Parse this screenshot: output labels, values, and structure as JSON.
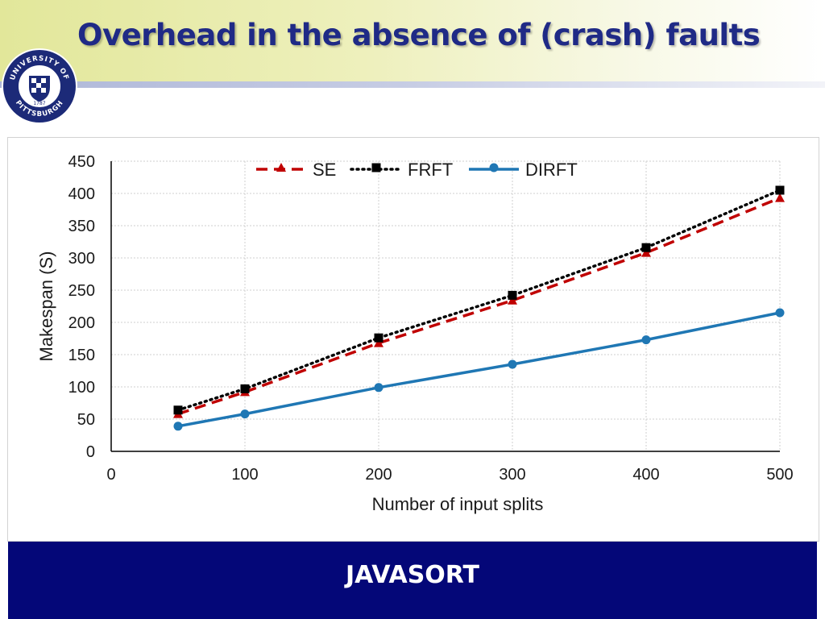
{
  "slide": {
    "title": "Overhead in the absence of (crash) faults",
    "caption": "JAVASORT",
    "logo_text_top": "UNIVERSITY OF",
    "logo_text_bottom": "PITTSBURGH",
    "logo_year": "1787"
  },
  "colors": {
    "title": "#1f2a86",
    "caption_bg": "#040778",
    "SE": "#c00000",
    "FRFT": "#000000",
    "DIRFT": "#1f77b4"
  },
  "chart_data": {
    "type": "line",
    "title": "",
    "xlabel": "Number of input splits",
    "ylabel": "Makespan (S)",
    "xlim": [
      0,
      500
    ],
    "ylim": [
      0,
      450
    ],
    "xticks": [
      0,
      100,
      200,
      300,
      400,
      500
    ],
    "yticks": [
      0,
      50,
      100,
      150,
      200,
      250,
      300,
      350,
      400,
      450
    ],
    "grid": true,
    "legend": "top",
    "x": [
      50,
      100,
      200,
      300,
      400,
      500
    ],
    "series": [
      {
        "name": "SE",
        "values": [
          58,
          92,
          168,
          234,
          308,
          393
        ],
        "style": "dashed",
        "marker": "triangle"
      },
      {
        "name": "FRFT",
        "values": [
          64,
          97,
          176,
          242,
          316,
          405
        ],
        "style": "dotted",
        "marker": "square"
      },
      {
        "name": "DIRFT",
        "values": [
          39,
          58,
          99,
          135,
          173,
          215
        ],
        "style": "solid",
        "marker": "circle"
      }
    ]
  }
}
